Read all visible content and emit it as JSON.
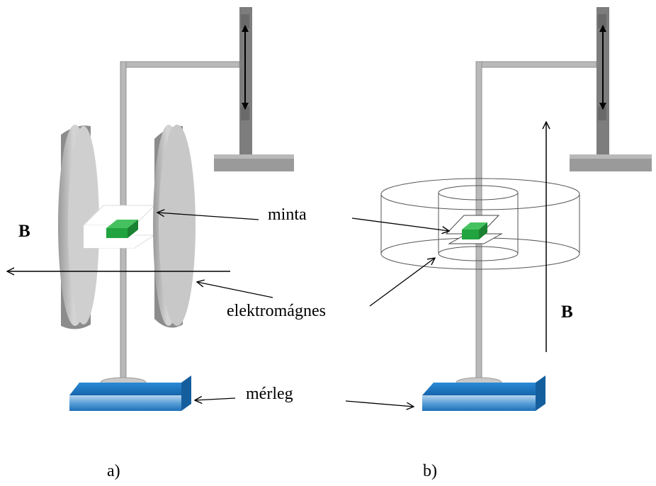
{
  "labels": {
    "sample": "minta",
    "electromagnet": "elektromágnes",
    "balance": "mérleg",
    "field_a": "B",
    "field_b": "B",
    "panel_a": "a)",
    "panel_b": "b)"
  },
  "colors": {
    "support": "#b4b4b4",
    "support_dark": "#8a8a8a",
    "rail": "#7a7a7a",
    "disk_front": "#c8c8c8",
    "disk_side": "#8c8c8c",
    "sample": "#21a33f",
    "balance": "#1a79c4",
    "balance_light": "#a8cbe8"
  }
}
